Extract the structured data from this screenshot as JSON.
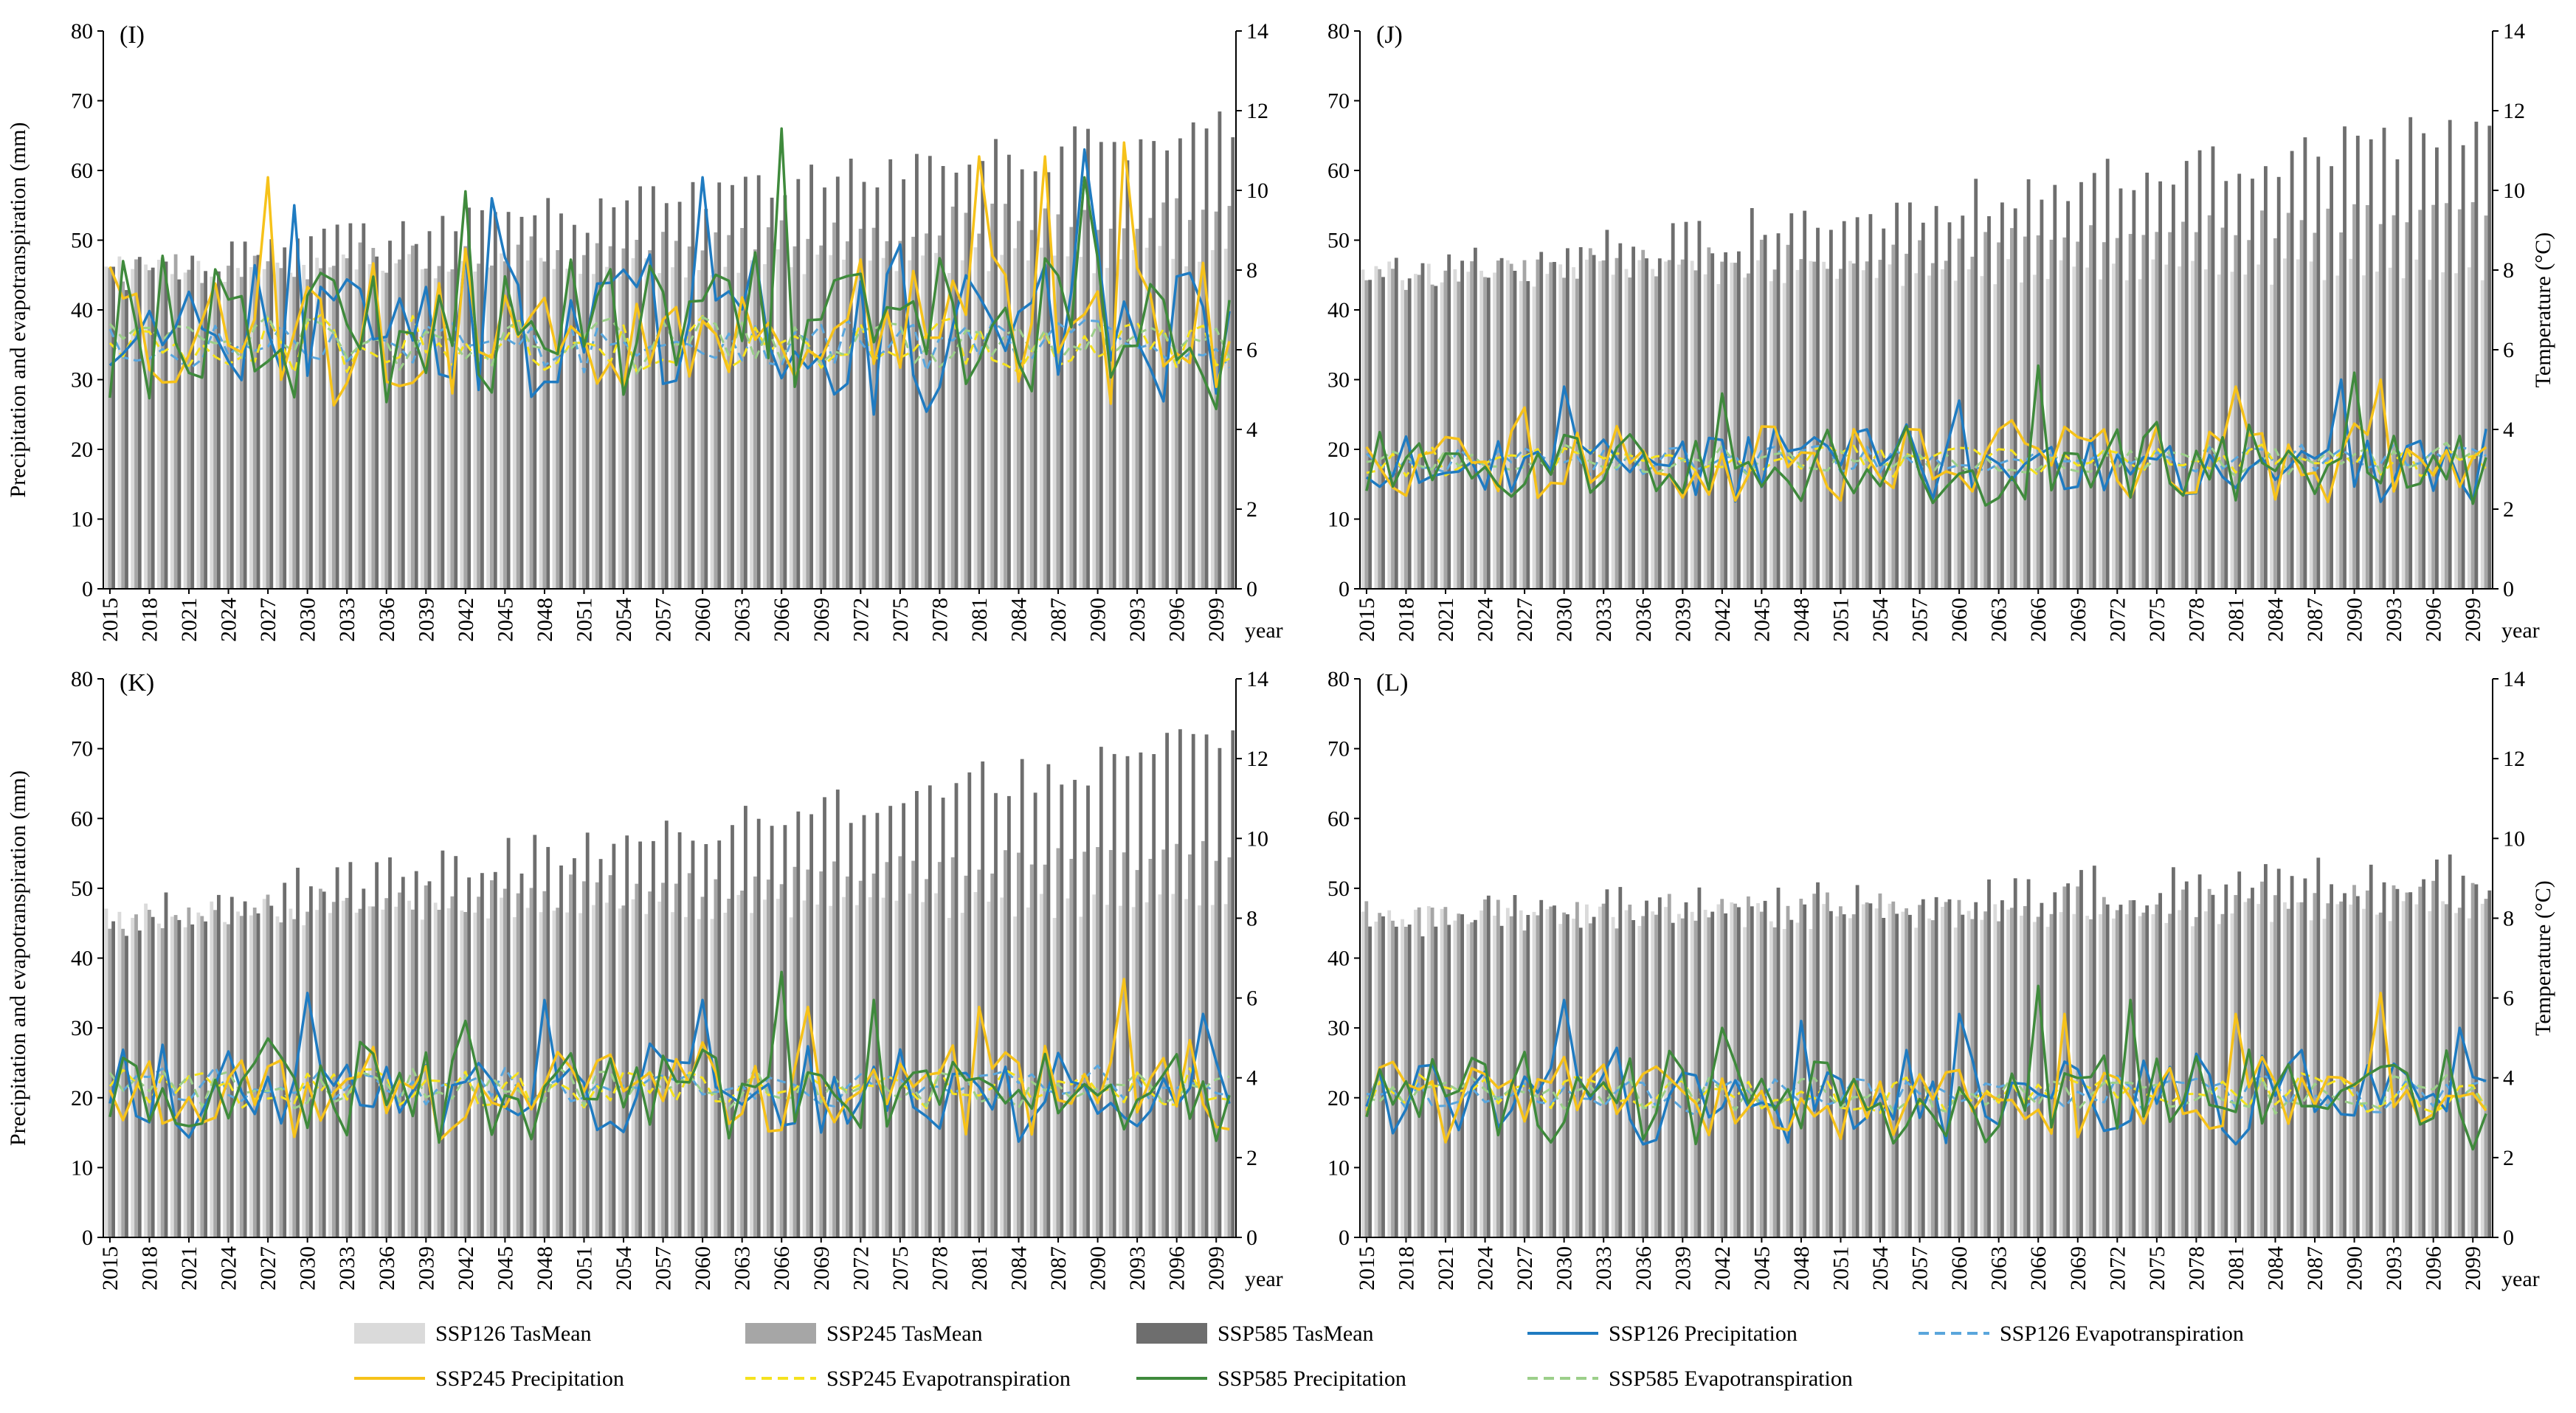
{
  "chart_data": {
    "type": "bar-line-combo",
    "x_range": [
      2015,
      2100
    ],
    "x_tick_labels": [
      "2015",
      "2018",
      "2021",
      "2024",
      "2027",
      "2030",
      "2033",
      "2036",
      "2039",
      "2042",
      "2045",
      "2048",
      "2051",
      "2054",
      "2057",
      "2060",
      "2063",
      "2066",
      "2069",
      "2072",
      "2075",
      "2078",
      "2081",
      "2084",
      "2087",
      "2090",
      "2093",
      "2096",
      "2099"
    ],
    "x_axis_label": "year",
    "y_left": {
      "label": "Precipitation and evapotranspiration (mm)",
      "ylim": [
        0,
        80
      ],
      "ticks": [
        0,
        10,
        20,
        30,
        40,
        50,
        60,
        70,
        80
      ]
    },
    "y_right": {
      "label": "Temperature (°C)",
      "ylim": [
        0,
        14
      ],
      "ticks": [
        0,
        2,
        4,
        6,
        8,
        10,
        12,
        14
      ]
    },
    "colors": {
      "ssp126_tas": "#dadada",
      "ssp245_tas": "#a6a6a6",
      "ssp585_tas": "#6e6e6e",
      "ssp126_pr": "#1f7bc1",
      "ssp126_et": "#5aa6dc",
      "ssp245_pr": "#f6c21a",
      "ssp245_et": "#f5e21e",
      "ssp585_pr": "#3f8a3c",
      "ssp585_et": "#9ccf8a"
    },
    "series_names": {
      "ssp126_tas": "SSP126 TasMean",
      "ssp245_tas": "SSP245 TasMean",
      "ssp585_tas": "SSP585 TasMean",
      "ssp126_pr": "SSP126 Precipitation",
      "ssp126_et": "SSP126 Evapotranspiration",
      "ssp245_pr": "SSP245 Precipitation",
      "ssp245_et": "SSP245 Evapotranspiration",
      "ssp585_pr": "SSP585 Precipitation",
      "ssp585_et": "SSP585 Evapotranspiration"
    },
    "panels": [
      {
        "id": "I",
        "label": "(I)",
        "show_left_title": true,
        "show_right_title": false,
        "tas126_start": 8.0,
        "tas126_end": 8.3,
        "tas245_start": 7.9,
        "tas245_end": 9.6,
        "tas585_start": 7.9,
        "tas585_end": 11.6,
        "pr_mean": 37,
        "pr_amp": 10,
        "et_mean": 35,
        "et_amp": 3.5,
        "pr126_peaks": [
          {
            "year": 2029,
            "value": 55
          },
          {
            "year": 2044,
            "value": 56
          },
          {
            "year": 2060,
            "value": 59
          },
          {
            "year": 2089,
            "value": 63
          }
        ],
        "pr245_peaks": [
          {
            "year": 2027,
            "value": 59
          },
          {
            "year": 2081,
            "value": 62
          },
          {
            "year": 2086,
            "value": 62
          },
          {
            "year": 2092,
            "value": 64
          }
        ],
        "pr585_peaks": [
          {
            "year": 2042,
            "value": 57
          },
          {
            "year": 2066,
            "value": 66
          },
          {
            "year": 2089,
            "value": 59
          }
        ]
      },
      {
        "id": "J",
        "label": "(J)",
        "show_left_title": false,
        "show_right_title": true,
        "tas126_start": 7.9,
        "tas126_end": 8.0,
        "tas245_start": 7.8,
        "tas245_end": 9.4,
        "tas585_start": 7.7,
        "tas585_end": 11.6,
        "pr_mean": 18,
        "pr_amp": 5,
        "et_mean": 18.5,
        "et_amp": 2,
        "pr126_peaks": [
          {
            "year": 2030,
            "value": 29
          },
          {
            "year": 2060,
            "value": 27
          },
          {
            "year": 2089,
            "value": 30
          }
        ],
        "pr245_peaks": [
          {
            "year": 2027,
            "value": 26
          },
          {
            "year": 2081,
            "value": 29
          },
          {
            "year": 2092,
            "value": 30
          }
        ],
        "pr585_peaks": [
          {
            "year": 2042,
            "value": 28
          },
          {
            "year": 2066,
            "value": 32
          },
          {
            "year": 2090,
            "value": 31
          }
        ]
      },
      {
        "id": "K",
        "label": "(K)",
        "show_left_title": true,
        "show_right_title": false,
        "tas126_start": 8.1,
        "tas126_end": 8.4,
        "tas245_start": 8.0,
        "tas245_end": 9.6,
        "tas585_start": 8.0,
        "tas585_end": 12.4,
        "pr_mean": 21,
        "pr_amp": 6,
        "et_mean": 21.5,
        "et_amp": 2.5,
        "pr126_peaks": [
          {
            "year": 2030,
            "value": 35
          },
          {
            "year": 2048,
            "value": 34
          },
          {
            "year": 2060,
            "value": 34
          },
          {
            "year": 2098,
            "value": 32
          }
        ],
        "pr245_peaks": [
          {
            "year": 2068,
            "value": 33
          },
          {
            "year": 2081,
            "value": 33
          },
          {
            "year": 2092,
            "value": 37
          }
        ],
        "pr585_peaks": [
          {
            "year": 2042,
            "value": 31
          },
          {
            "year": 2066,
            "value": 38
          },
          {
            "year": 2073,
            "value": 34
          }
        ]
      },
      {
        "id": "L",
        "label": "(L)",
        "show_left_title": false,
        "show_right_title": true,
        "tas126_start": 8.0,
        "tas126_end": 8.2,
        "tas245_start": 8.0,
        "tas245_end": 8.6,
        "tas585_start": 8.0,
        "tas585_end": 9.2,
        "pr_mean": 20,
        "pr_amp": 6,
        "et_mean": 20.5,
        "et_amp": 2.5,
        "pr126_peaks": [
          {
            "year": 2030,
            "value": 34
          },
          {
            "year": 2048,
            "value": 31
          },
          {
            "year": 2060,
            "value": 32
          },
          {
            "year": 2098,
            "value": 30
          }
        ],
        "pr245_peaks": [
          {
            "year": 2068,
            "value": 32
          },
          {
            "year": 2081,
            "value": 32
          },
          {
            "year": 2092,
            "value": 35
          }
        ],
        "pr585_peaks": [
          {
            "year": 2042,
            "value": 30
          },
          {
            "year": 2066,
            "value": 36
          },
          {
            "year": 2073,
            "value": 34
          }
        ]
      }
    ],
    "legend": [
      {
        "key": "ssp126_tas",
        "kind": "box"
      },
      {
        "key": "ssp245_tas",
        "kind": "box"
      },
      {
        "key": "ssp585_tas",
        "kind": "box"
      },
      {
        "key": "ssp126_pr",
        "kind": "line"
      },
      {
        "key": "ssp126_et",
        "kind": "dash"
      },
      {
        "key": "ssp245_pr",
        "kind": "line"
      },
      {
        "key": "ssp245_et",
        "kind": "dash"
      },
      {
        "key": "ssp585_pr",
        "kind": "line"
      },
      {
        "key": "ssp585_et",
        "kind": "dash"
      }
    ]
  }
}
